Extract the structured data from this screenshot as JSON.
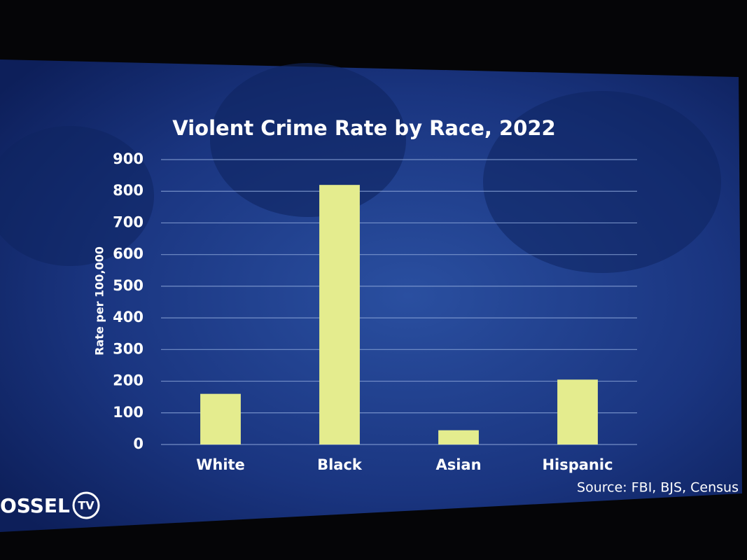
{
  "chart_data": {
    "type": "bar",
    "title": "Violent Crime Rate by Race, 2022",
    "y_label": "Rate per 100,000",
    "categories": [
      "White",
      "Black",
      "Asian",
      "Hispanic"
    ],
    "values": [
      160,
      820,
      45,
      205
    ],
    "color": "#e4ec8e",
    "ylim": [
      0,
      900
    ],
    "yticks": [
      0,
      100,
      200,
      300,
      400,
      500,
      600,
      700,
      800,
      900
    ],
    "grid": true,
    "source": "Source: FBI, BJS, Census",
    "logo": "OSSEL",
    "logo_badge": "TV"
  }
}
